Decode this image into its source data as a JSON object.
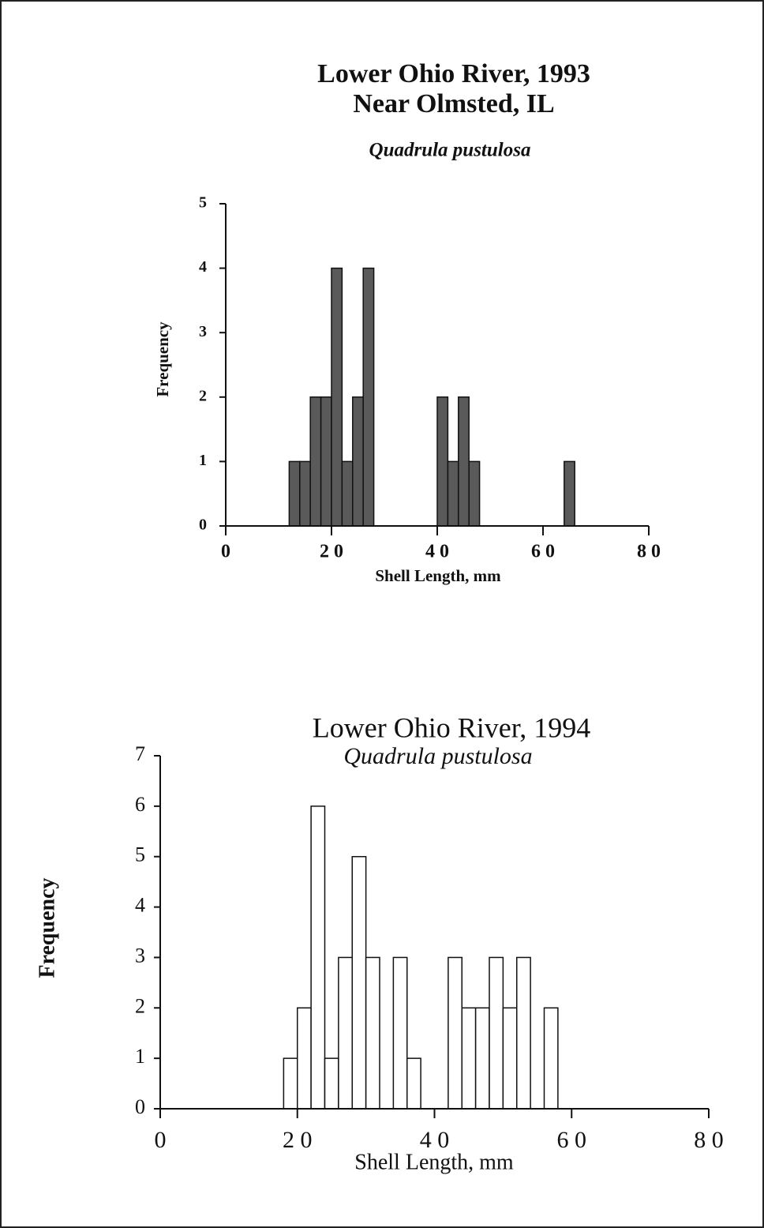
{
  "chart_data": [
    {
      "type": "histogram",
      "title": "Lower Ohio River, 1993",
      "subtitle": "Near Olmsted, IL",
      "species": "Quadrula pustulosa",
      "xlabel": "Shell Length, mm",
      "ylabel": "Frequency",
      "bins": [
        12,
        14,
        16,
        18,
        20,
        22,
        24,
        26,
        28,
        30,
        32,
        34,
        36,
        38,
        40,
        42,
        44,
        46,
        48,
        50,
        52,
        54,
        56,
        58,
        60,
        62,
        64,
        66
      ],
      "values": [
        1,
        1,
        2,
        2,
        4,
        1,
        2,
        4,
        0,
        0,
        0,
        0,
        0,
        0,
        2,
        1,
        2,
        1,
        0,
        0,
        0,
        0,
        0,
        0,
        0,
        0,
        1
      ],
      "color": "#5a5a5a",
      "xlim": [
        0,
        80
      ],
      "xticks": [
        0,
        {
          "value": 20,
          "label": "2 0"
        },
        {
          "value": 40,
          "label": "4 0"
        },
        {
          "value": 60,
          "label": "6 0"
        },
        {
          "value": 80,
          "label": "8 0"
        }
      ],
      "ylim": [
        0,
        5
      ],
      "yticks": [
        0,
        1,
        2,
        3,
        4,
        5
      ]
    },
    {
      "type": "histogram",
      "title": "Lower Ohio River, 1994",
      "species": "Quadrula pustulosa",
      "xlabel": "Shell Length, mm",
      "ylabel": "Frequency",
      "bins": [
        18,
        20,
        22,
        24,
        26,
        28,
        30,
        32,
        34,
        36,
        38,
        40,
        42,
        44,
        46,
        48,
        50,
        52,
        54,
        56,
        58
      ],
      "values": [
        1,
        2,
        6,
        1,
        3,
        5,
        3,
        0,
        3,
        1,
        0,
        0,
        3,
        2,
        2,
        3,
        2,
        3,
        0,
        2
      ],
      "color": "#ffffff",
      "xlim": [
        0,
        80
      ],
      "xticks": [
        0,
        {
          "value": 20,
          "label": "2 0"
        },
        {
          "value": 40,
          "label": "4 0"
        },
        {
          "value": 60,
          "label": "6 0"
        },
        {
          "value": 80,
          "label": "8 0"
        }
      ],
      "ylim": [
        0,
        7
      ],
      "yticks": [
        0,
        1,
        2,
        3,
        4,
        5,
        6,
        7
      ]
    }
  ]
}
